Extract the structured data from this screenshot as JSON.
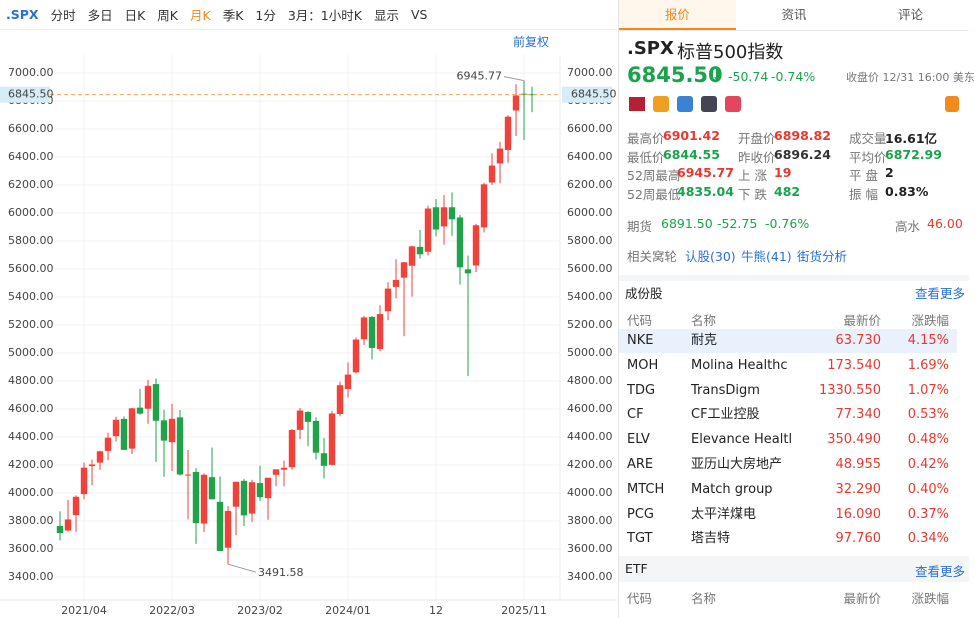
{
  "toolbar": {
    "symbol": ".SPX",
    "items": [
      "分时",
      "多日",
      "日K",
      "周K",
      "月K",
      "季K",
      "1分",
      "3月：1小时K",
      "显示",
      "VS"
    ],
    "adjust": "前复权"
  },
  "chart_data": {
    "type": "candlestick",
    "up_color": "#f0413a",
    "down_color": "#1fa24a",
    "categories": [
      null,
      null,
      null,
      "2021/04",
      null,
      null,
      null,
      null,
      null,
      null,
      null,
      null,
      null,
      null,
      "2022/03",
      null,
      null,
      null,
      null,
      null,
      null,
      null,
      null,
      null,
      null,
      "2023/02",
      null,
      null,
      null,
      null,
      null,
      null,
      null,
      null,
      null,
      null,
      "2024/01",
      null,
      null,
      null,
      null,
      null,
      null,
      null,
      null,
      null,
      null,
      "12",
      null,
      null,
      null,
      null,
      null,
      null,
      null,
      null,
      null,
      null,
      "2025/11",
      null
    ],
    "open": [
      3764,
      3732,
      3843,
      3992,
      4192,
      4217,
      4301,
      4406,
      4529,
      4317,
      4610,
      4602,
      4778,
      4519,
      4363,
      4540,
      4131,
      4150,
      3782,
      4113,
      3937,
      3609,
      3902,
      4087,
      3853,
      4071,
      3963,
      4130,
      4166,
      4184,
      4451,
      4579,
      4515,
      4284,
      4201,
      4564,
      4743,
      4862,
      5098,
      5258,
      5029,
      5298,
      5472,
      5538,
      5623,
      5758,
      5723,
      6041,
      5904,
      6041,
      5968,
      5597,
      5625,
      5897,
      6218,
      6354,
      6450,
      6732,
      6852,
      6849
    ],
    "high": [
      3870,
      3950,
      3983,
      4218,
      4238,
      4302,
      4430,
      4545,
      4546,
      4608,
      4744,
      4808,
      4819,
      4595,
      4637,
      4593,
      4307,
      4178,
      4140,
      4325,
      4119,
      3906,
      4080,
      4101,
      4095,
      4195,
      4110,
      4170,
      4232,
      4458,
      4607,
      4584,
      4541,
      4393,
      4587,
      4794,
      4932,
      5111,
      5265,
      5264,
      5342,
      5505,
      5670,
      5651,
      5768,
      5879,
      6053,
      6100,
      6128,
      6147,
      5987,
      5696,
      5922,
      6216,
      6427,
      6508,
      6699,
      6920,
      6945.77,
      6901.42
    ],
    "low": [
      3662,
      3725,
      3723,
      3955,
      4056,
      4165,
      4233,
      4368,
      4306,
      4279,
      4560,
      4495,
      4222,
      4115,
      4157,
      4124,
      3811,
      3637,
      3721,
      3955,
      3585,
      3491.58,
      3698,
      3764,
      3794,
      3943,
      3809,
      4049,
      4048,
      4167,
      4385,
      4335,
      4238,
      4104,
      4197,
      4547,
      4682,
      4853,
      5057,
      4954,
      5012,
      5234,
      5390,
      5120,
      5403,
      5674,
      5697,
      5832,
      5773,
      5837,
      5488,
      4835.04,
      5578,
      5862,
      6201,
      6212,
      6360,
      6550,
      6521,
      6720
    ],
    "close": [
      3714,
      3811,
      3973,
      4181,
      4204,
      4298,
      4395,
      4523,
      4308,
      4605,
      4567,
      4766,
      4516,
      4374,
      4530,
      4132,
      4132,
      3785,
      4130,
      3955,
      3586,
      3872,
      4080,
      3840,
      4077,
      3970,
      4109,
      4169,
      4180,
      4450,
      4589,
      4508,
      4288,
      4194,
      4568,
      4770,
      4846,
      5096,
      5254,
      5036,
      5278,
      5460,
      5522,
      5648,
      5762,
      5705,
      6032,
      5882,
      6041,
      5955,
      5612,
      5569,
      5912,
      6205,
      6339,
      6460,
      6688,
      6840,
      6849,
      6845.5
    ],
    "ylim": [
      3400,
      7000
    ],
    "yticks": [
      {
        "value": 3400,
        "label": "3400.00"
      },
      {
        "value": 3600,
        "label": "3600.00"
      },
      {
        "value": 3800,
        "label": "3800.00"
      },
      {
        "value": 4000,
        "label": "4000.00"
      },
      {
        "value": 4200,
        "label": "4200.00"
      },
      {
        "value": 4400,
        "label": "4400.00"
      },
      {
        "value": 4600,
        "label": "4600.00"
      },
      {
        "value": 4800,
        "label": "4800.00"
      },
      {
        "value": 5000,
        "label": "5000.00"
      },
      {
        "value": 5200,
        "label": "5200.00"
      },
      {
        "value": 5400,
        "label": "5400.00"
      },
      {
        "value": 5600,
        "label": "5600.00"
      },
      {
        "value": 5800,
        "label": "5800.00"
      },
      {
        "value": 6000,
        "label": "6000.00"
      },
      {
        "value": 6200,
        "label": "6200.00"
      },
      {
        "value": 6400,
        "label": "6400.00"
      },
      {
        "value": 6600,
        "label": "6600.00"
      },
      {
        "value": 6800,
        "label": "6800.00"
      },
      {
        "value": 7000,
        "label": "7000.00"
      }
    ],
    "price_line": {
      "value": 6845.5,
      "label": "6845.50"
    },
    "annotations": [
      {
        "value": 6945.77,
        "label": "6945.77"
      },
      {
        "value": 3491.58,
        "label": "3491.58"
      }
    ],
    "grid": true
  },
  "tabs": [
    "报价",
    "资讯",
    "评论"
  ],
  "quote": {
    "symbol": ".SPX",
    "name": "标普500指数",
    "price": "6845.50",
    "change": "-50.74",
    "change_pct": "-0.74%",
    "close_time": "收盘价 12/31 16:00 美东",
    "stats": [
      [
        {
          "label": "最高价",
          "value": "6901.42",
          "color": "#e8382f"
        },
        {
          "label": "开盘价",
          "value": "6898.82",
          "color": "#e8382f"
        },
        {
          "label": "成交量",
          "value": "16.61亿",
          "color": "#222"
        }
      ],
      [
        {
          "label": "最低价",
          "value": "6844.55",
          "color": "#1aa34a"
        },
        {
          "label": "昨收价",
          "value": "6896.24",
          "color": "#333"
        },
        {
          "label": "平均价",
          "value": "6872.99",
          "color": "#1aa34a"
        }
      ],
      [
        {
          "label": "52周最高",
          "value": "6945.77",
          "color": "#e8382f"
        },
        {
          "label": "上 涨",
          "value": "19",
          "color": "#e8382f"
        },
        {
          "label": "平 盘",
          "value": "2",
          "color": "#222"
        }
      ],
      [
        {
          "label": "52周最低",
          "value": "4835.04",
          "color": "#1aa34a"
        },
        {
          "label": "下 跌",
          "value": "482",
          "color": "#1aa34a"
        },
        {
          "label": "振 幅",
          "value": "0.83%",
          "color": "#222"
        }
      ]
    ],
    "futures": {
      "label": "期货",
      "price": "6891.50",
      "change": "-52.75",
      "change_pct": "-0.76%",
      "premium_label": "高水",
      "premium": "46.00"
    },
    "warrants": {
      "label": "相关窝轮",
      "links": [
        "认股(30)",
        "牛熊(41)",
        "街货分析"
      ]
    }
  },
  "constituents": {
    "title": "成份股",
    "more": "查看更多",
    "columns": [
      "代码",
      "名称",
      "最新价",
      "涨跌幅"
    ],
    "rows": [
      [
        "NKE",
        "耐克",
        "63.730",
        "4.15%"
      ],
      [
        "MOH",
        "Molina Healthc",
        "173.540",
        "1.69%"
      ],
      [
        "TDG",
        "TransDigm",
        "1330.550",
        "1.07%"
      ],
      [
        "CF",
        "CF工业控股",
        "77.340",
        "0.53%"
      ],
      [
        "ELV",
        "Elevance Healtl",
        "350.490",
        "0.48%"
      ],
      [
        "ARE",
        "亚历山大房地产",
        "48.955",
        "0.42%"
      ],
      [
        "MTCH",
        "Match group",
        "32.290",
        "0.40%"
      ],
      [
        "PCG",
        "太平洋煤电",
        "16.090",
        "0.37%"
      ],
      [
        "TGT",
        "塔吉特",
        "97.760",
        "0.34%"
      ]
    ]
  },
  "etf": {
    "title": "ETF",
    "more": "查看更多",
    "columns": [
      "代码",
      "名称",
      "最新价",
      "涨跌幅"
    ]
  }
}
